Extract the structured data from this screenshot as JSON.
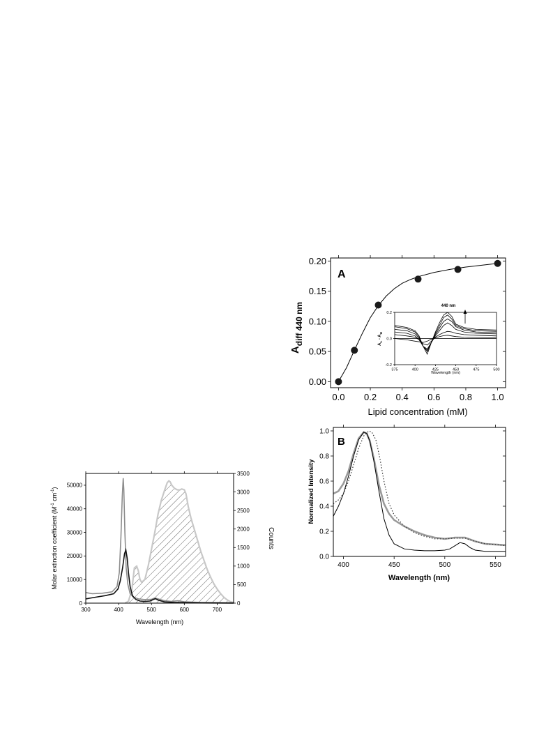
{
  "chart_data": [
    {
      "id": "spectra",
      "type": "line",
      "xlabel": "Wavelength (nm)",
      "ylabel_left": "Molar extinction coefficient (M",
      "ylabel_left_sup1": "-1",
      "ylabel_left_mid": " cm",
      "ylabel_left_sup2": "-1",
      "ylabel_left_end": ")",
      "ylabel_right": "Counts",
      "xlim": [
        300,
        750
      ],
      "ylim_left": [
        0,
        55000
      ],
      "ylim_right": [
        0,
        3500
      ],
      "xticks": [
        300,
        400,
        500,
        600,
        700
      ],
      "xtick_labels": [
        "300",
        "400",
        "500",
        "600",
        "700"
      ],
      "yticks_left": [
        0,
        10000,
        20000,
        30000,
        40000,
        50000
      ],
      "ytick_labels_left": [
        "0",
        "10000",
        "20000",
        "30000",
        "40000",
        "50000"
      ],
      "yticks_right": [
        0,
        500,
        1000,
        1500,
        2000,
        2500,
        3000,
        3500
      ],
      "ytick_labels_right": [
        "0",
        "500",
        "1000",
        "1500",
        "2000",
        "2500",
        "3000",
        "3500"
      ],
      "grid": false,
      "series": [
        {
          "axis": "left",
          "color": "#8c8c8c",
          "x": [
            300,
            320,
            350,
            380,
            395,
            402,
            407,
            411,
            414,
            416,
            419,
            423,
            428,
            435,
            445,
            460,
            480,
            500,
            510,
            520,
            540,
            560,
            580,
            600,
            650,
            700,
            750
          ],
          "y": [
            4500,
            4000,
            4200,
            4800,
            7000,
            13000,
            28000,
            45000,
            53000,
            48000,
            30000,
            15000,
            8000,
            4000,
            2500,
            1800,
            1500,
            1600,
            2200,
            1800,
            1000,
            700,
            1000,
            600,
            300,
            200,
            100
          ]
        },
        {
          "axis": "left",
          "color": "#111111",
          "x": [
            300,
            330,
            360,
            385,
            398,
            405,
            412,
            418,
            422,
            426,
            430,
            435,
            442,
            452,
            465,
            480,
            495,
            505,
            512,
            520,
            540,
            570,
            600,
            650,
            700,
            750
          ],
          "y": [
            1800,
            2500,
            3200,
            4000,
            6000,
            9500,
            15000,
            21000,
            22500,
            19000,
            13000,
            7000,
            3200,
            1600,
            900,
            700,
            900,
            1500,
            1900,
            1300,
            500,
            300,
            200,
            100,
            50,
            30
          ]
        },
        {
          "axis": "right",
          "color": "#c8c8c8",
          "fill": "hatch",
          "x": [
            420,
            430,
            440,
            448,
            455,
            460,
            465,
            470,
            480,
            490,
            500,
            510,
            520,
            530,
            540,
            548,
            553,
            557,
            562,
            570,
            578,
            585,
            592,
            600,
            605,
            612,
            620,
            630,
            640,
            650,
            660,
            670,
            680,
            690,
            700,
            710,
            720,
            730,
            740,
            750
          ],
          "y": [
            0,
            50,
            350,
            950,
            1000,
            870,
            640,
            560,
            640,
            1000,
            1450,
            1900,
            2400,
            2780,
            3050,
            3250,
            3300,
            3270,
            3180,
            3100,
            3060,
            3050,
            3080,
            3060,
            2950,
            2600,
            2300,
            2000,
            1700,
            1400,
            1150,
            900,
            700,
            520,
            380,
            260,
            160,
            90,
            40,
            20
          ]
        }
      ]
    },
    {
      "id": "panelA",
      "type": "scatter",
      "panel_label": "A",
      "xlabel": "Lipid concentration (mM)",
      "ylabel_main": "A",
      "ylabel_sub": "diff 440 nm",
      "xlim": [
        -0.05,
        1.05
      ],
      "ylim": [
        -0.01,
        0.205
      ],
      "xticks": [
        0.0,
        0.2,
        0.4,
        0.6,
        0.8,
        1.0
      ],
      "xtick_labels": [
        "0.0",
        "0.2",
        "0.4",
        "0.6",
        "0.8",
        "1.0"
      ],
      "yticks": [
        0.0,
        0.05,
        0.1,
        0.15,
        0.2
      ],
      "ytick_labels": [
        "0.00",
        "0.05",
        "0.10",
        "0.15",
        "0.20"
      ],
      "grid": false,
      "points": {
        "x": [
          0.0,
          0.1,
          0.25,
          0.5,
          0.75,
          1.0
        ],
        "y": [
          0.0,
          0.052,
          0.127,
          0.17,
          0.186,
          0.196
        ]
      },
      "fit": {
        "x": [
          0.0,
          0.05,
          0.1,
          0.15,
          0.2,
          0.25,
          0.3,
          0.35,
          0.4,
          0.45,
          0.5,
          0.6,
          0.7,
          0.8,
          0.9,
          1.0
        ],
        "y": [
          0.0,
          0.023,
          0.052,
          0.08,
          0.106,
          0.126,
          0.142,
          0.154,
          0.163,
          0.169,
          0.174,
          0.181,
          0.186,
          0.19,
          0.193,
          0.196
        ]
      },
      "inset": {
        "xlabel": "Wavelength (nm)",
        "ylabel_main": "A",
        "ylabel_sub1": "L",
        "ylabel_mid": " - A",
        "ylabel_sub2": "H",
        "annotation": "440 nm",
        "xlim": [
          375,
          500
        ],
        "ylim": [
          -0.2,
          0.2
        ],
        "xticks": [
          375,
          400,
          425,
          450,
          475,
          500
        ],
        "xtick_labels": [
          "375",
          "400",
          "425",
          "450",
          "475",
          "500"
        ],
        "yticks": [
          -0.2,
          0.0,
          0.2
        ],
        "ytick_labels": [
          "-0.2",
          "0.0",
          "0.2"
        ],
        "x": [
          375,
          390,
          400,
          405,
          410,
          415,
          420,
          425,
          430,
          435,
          440,
          445,
          450,
          460,
          475,
          500
        ],
        "curves": [
          [
            0.0,
            -0.01,
            -0.02,
            -0.025,
            -0.03,
            -0.02,
            -0.005,
            0.005,
            0.015,
            0.022,
            0.025,
            0.02,
            0.015,
            0.01,
            0.008,
            0.005
          ],
          [
            0.03,
            0.02,
            0.01,
            -0.01,
            -0.04,
            -0.05,
            -0.02,
            0.01,
            0.03,
            0.045,
            0.055,
            0.05,
            0.04,
            0.03,
            0.025,
            0.02
          ],
          [
            0.05,
            0.04,
            0.02,
            -0.01,
            -0.06,
            -0.08,
            -0.03,
            0.02,
            0.06,
            0.1,
            0.12,
            0.1,
            0.07,
            0.05,
            0.04,
            0.035
          ],
          [
            0.07,
            0.06,
            0.035,
            0.0,
            -0.06,
            -0.09,
            -0.03,
            0.03,
            0.08,
            0.13,
            0.15,
            0.13,
            0.09,
            0.065,
            0.05,
            0.045
          ],
          [
            0.09,
            0.075,
            0.05,
            0.01,
            -0.06,
            -0.1,
            -0.03,
            0.04,
            0.1,
            0.16,
            0.18,
            0.15,
            0.1,
            0.075,
            0.06,
            0.055
          ],
          [
            0.1,
            0.085,
            0.06,
            0.02,
            -0.06,
            -0.12,
            -0.03,
            0.05,
            0.12,
            0.18,
            0.2,
            0.17,
            0.11,
            0.085,
            0.07,
            0.065
          ]
        ]
      }
    },
    {
      "id": "panelB",
      "type": "line",
      "panel_label": "B",
      "xlabel": "Wavelength (nm)",
      "ylabel": "Normalized Intensity",
      "xlim": [
        390,
        560
      ],
      "ylim": [
        0,
        1.0
      ],
      "xticks": [
        400,
        450,
        500,
        550
      ],
      "xtick_labels": [
        "400",
        "450",
        "500",
        "550"
      ],
      "yticks": [
        0.0,
        0.2,
        0.4,
        0.6,
        0.8,
        1.0
      ],
      "ytick_labels": [
        "0.0",
        "0.2",
        "0.4",
        "0.6",
        "0.8",
        "1.0"
      ],
      "grid": false,
      "series": [
        {
          "color": "#000000",
          "style": "solid",
          "width": 1,
          "x": [
            390,
            395,
            400,
            405,
            410,
            415,
            420,
            423,
            426,
            430,
            435,
            440,
            445,
            450,
            460,
            470,
            480,
            490,
            500,
            505,
            510,
            515,
            520,
            525,
            530,
            540,
            550,
            560
          ],
          "y": [
            0.32,
            0.4,
            0.5,
            0.64,
            0.8,
            0.93,
            0.99,
            0.98,
            0.92,
            0.76,
            0.52,
            0.3,
            0.17,
            0.1,
            0.06,
            0.05,
            0.045,
            0.045,
            0.05,
            0.06,
            0.085,
            0.11,
            0.1,
            0.07,
            0.05,
            0.04,
            0.04,
            0.04
          ]
        },
        {
          "color": "#9a9a9a",
          "style": "solid",
          "width": 2.6,
          "x": [
            390,
            395,
            400,
            405,
            410,
            415,
            420,
            423,
            426,
            430,
            435,
            440,
            445,
            450,
            460,
            470,
            480,
            490,
            500,
            510,
            520,
            530,
            540,
            550,
            560
          ],
          "y": [
            0.5,
            0.52,
            0.58,
            0.68,
            0.82,
            0.94,
            0.99,
            0.98,
            0.92,
            0.78,
            0.57,
            0.42,
            0.34,
            0.29,
            0.24,
            0.2,
            0.17,
            0.15,
            0.14,
            0.15,
            0.15,
            0.12,
            0.1,
            0.095,
            0.09
          ]
        },
        {
          "color": "#333333",
          "style": "dotted",
          "width": 1.2,
          "x": [
            390,
            395,
            400,
            405,
            410,
            415,
            420,
            425,
            428,
            432,
            436,
            440,
            445,
            450,
            460,
            470,
            480,
            490,
            500,
            510,
            520,
            530,
            540,
            550,
            560
          ],
          "y": [
            0.42,
            0.45,
            0.5,
            0.6,
            0.73,
            0.86,
            0.96,
            1.0,
            0.99,
            0.93,
            0.78,
            0.6,
            0.42,
            0.33,
            0.24,
            0.19,
            0.16,
            0.14,
            0.14,
            0.145,
            0.145,
            0.12,
            0.1,
            0.095,
            0.085
          ]
        }
      ]
    }
  ]
}
